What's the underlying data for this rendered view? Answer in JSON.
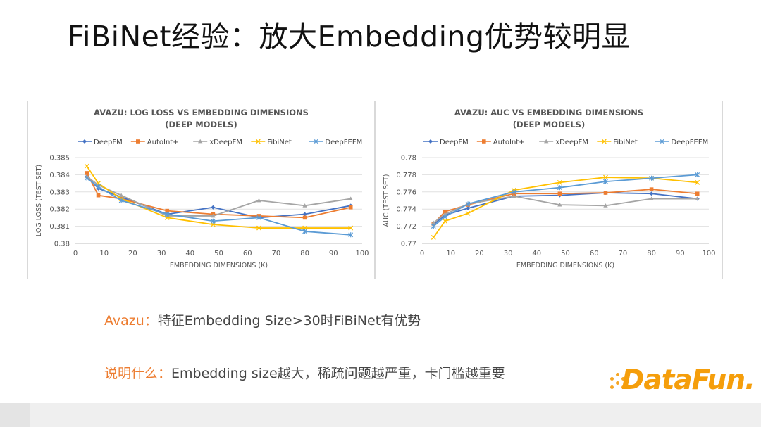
{
  "slide": {
    "title": "FiBiNet经验：放大Embedding优势较明显"
  },
  "captions": [
    {
      "label": "Avazu：",
      "text": "特征Embedding Size>30时FiBiNet有优势"
    },
    {
      "label": "说明什么：",
      "text": "Embedding size越大，稀疏问题越严重，卡门槛越重要"
    }
  ],
  "logo": {
    "text": "DataFun."
  },
  "colors": {
    "DeepFM": "#4472C4",
    "AutoInt+": "#ED7D31",
    "xDeepFM": "#A5A5A5",
    "FibiNet": "#FFC000",
    "DeepFEFM": "#5B9BD5",
    "accent": "#ED7D31"
  },
  "chart_data": [
    {
      "type": "line",
      "title": [
        "AVAZU: LOG LOSS VS EMBEDDING DIMENSIONS",
        "(DEEP MODELS)"
      ],
      "xlabel": "EMBEDDING DIMENSIONS (K)",
      "ylabel": "LOG LOSS (TEST SET)",
      "xlim": [
        0,
        100
      ],
      "ylim": [
        0.38,
        0.385
      ],
      "xticks": [
        "0",
        "10",
        "20",
        "30",
        "40",
        "50",
        "60",
        "70",
        "80",
        "90",
        "100"
      ],
      "yticks": [
        "0.38",
        "0.381",
        "0.382",
        "0.383",
        "0.384",
        "0.385"
      ],
      "grid": true,
      "legend": "top",
      "series": [
        {
          "name": "DeepFM",
          "marker": "diamond",
          "x": [
            4,
            8,
            16,
            32,
            48,
            64,
            80,
            96
          ],
          "values": [
            0.3839,
            0.3832,
            0.3827,
            0.3817,
            0.3821,
            0.3815,
            0.3817,
            0.3822
          ]
        },
        {
          "name": "AutoInt+",
          "marker": "square",
          "x": [
            4,
            8,
            16,
            32,
            48,
            64,
            80,
            96
          ],
          "values": [
            0.3841,
            0.3828,
            0.3826,
            0.3819,
            0.3817,
            0.3816,
            0.3815,
            0.3821
          ]
        },
        {
          "name": "xDeepFM",
          "marker": "triangle",
          "x": [
            4,
            8,
            16,
            32,
            48,
            64,
            80,
            96
          ],
          "values": [
            0.3839,
            0.3834,
            0.3828,
            0.3816,
            0.3816,
            0.3825,
            0.3822,
            0.3826
          ]
        },
        {
          "name": "FibiNet",
          "marker": "x",
          "x": [
            4,
            8,
            16,
            32,
            48,
            64,
            80,
            96
          ],
          "values": [
            0.3845,
            0.3835,
            0.3826,
            0.3815,
            0.3811,
            0.3809,
            0.3809,
            0.3809
          ]
        },
        {
          "name": "DeepFEFM",
          "marker": "asterisk",
          "x": [
            4,
            8,
            16,
            32,
            48,
            64,
            80,
            96
          ],
          "values": [
            0.3838,
            0.3833,
            0.3825,
            0.3817,
            0.3813,
            0.3815,
            0.3807,
            0.3805
          ]
        }
      ]
    },
    {
      "type": "line",
      "title": [
        "AVAZU: AUC VS EMBEDDING DIMENSIONS",
        "(DEEP MODELS)"
      ],
      "xlabel": "EMBEDDING DIMENSIONS (K)",
      "ylabel": "AUC (TEST SET)",
      "xlim": [
        0,
        100
      ],
      "ylim": [
        0.77,
        0.778
      ],
      "xticks": [
        "0",
        "10",
        "20",
        "30",
        "40",
        "50",
        "60",
        "70",
        "80",
        "90",
        "100"
      ],
      "yticks": [
        "0.77",
        "0.772",
        "0.774",
        "0.776",
        "0.778",
        "0.78"
      ],
      "ytick_values": [
        0.77,
        0.772,
        0.774,
        0.776,
        0.778,
        0.78
      ],
      "grid": true,
      "legend": "top",
      "series": [
        {
          "name": "DeepFM",
          "marker": "diamond",
          "x": [
            4,
            8,
            16,
            32,
            48,
            64,
            80,
            96
          ],
          "values": [
            0.7722,
            0.7733,
            0.7741,
            0.7755,
            0.7756,
            0.7759,
            0.7758,
            0.7752
          ]
        },
        {
          "name": "AutoInt+",
          "marker": "square",
          "x": [
            4,
            8,
            16,
            32,
            48,
            64,
            80,
            96
          ],
          "values": [
            0.7723,
            0.7737,
            0.7745,
            0.7758,
            0.7758,
            0.7759,
            0.7763,
            0.7758
          ]
        },
        {
          "name": "xDeepFM",
          "marker": "triangle",
          "x": [
            4,
            8,
            16,
            32,
            48,
            64,
            80,
            96
          ],
          "values": [
            0.7724,
            0.7734,
            0.7746,
            0.7755,
            0.7745,
            0.7744,
            0.7752,
            0.7752
          ]
        },
        {
          "name": "FibiNet",
          "marker": "x",
          "x": [
            4,
            8,
            16,
            32,
            48,
            64,
            80,
            96
          ],
          "values": [
            0.7707,
            0.7726,
            0.7735,
            0.7762,
            0.7771,
            0.7777,
            0.7776,
            0.7771
          ]
        },
        {
          "name": "DeepFEFM",
          "marker": "asterisk",
          "x": [
            4,
            8,
            16,
            32,
            48,
            64,
            80,
            96
          ],
          "values": [
            0.772,
            0.7731,
            0.7746,
            0.776,
            0.7765,
            0.7772,
            0.7776,
            0.778
          ]
        }
      ]
    }
  ]
}
